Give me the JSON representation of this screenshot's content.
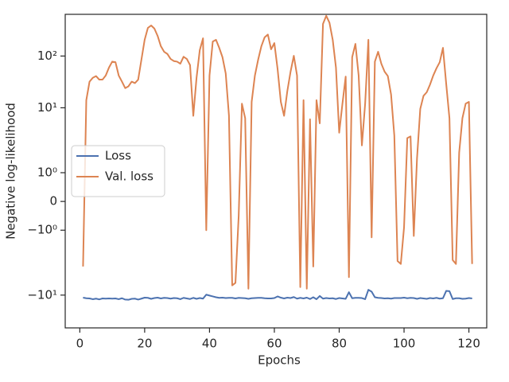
{
  "chart_data": {
    "type": "line",
    "xlabel": "Epochs",
    "ylabel": "Negative log-likelihood",
    "yscale": "symlog",
    "linthresh": 2,
    "xlim": [
      -4.5,
      125.5
    ],
    "xticks": [
      0,
      20,
      40,
      60,
      80,
      100,
      120
    ],
    "ylim": [
      -43,
      640
    ],
    "yticks": [
      {
        "value": -10,
        "label": "−10¹"
      },
      {
        "value": -1,
        "label": "−10⁰"
      },
      0,
      {
        "value": 1,
        "label": "10⁰"
      },
      {
        "value": 10,
        "label": "10¹"
      },
      {
        "value": 100,
        "label": "10²"
      }
    ],
    "legend": "center left",
    "x": [
      1,
      2,
      3,
      4,
      5,
      6,
      7,
      8,
      9,
      10,
      11,
      12,
      13,
      14,
      15,
      16,
      17,
      18,
      19,
      20,
      21,
      22,
      23,
      24,
      25,
      26,
      27,
      28,
      29,
      30,
      31,
      32,
      33,
      34,
      35,
      36,
      37,
      38,
      39,
      40,
      41,
      42,
      43,
      44,
      45,
      46,
      47,
      48,
      49,
      50,
      51,
      52,
      53,
      54,
      55,
      56,
      57,
      58,
      59,
      60,
      61,
      62,
      63,
      64,
      65,
      66,
      67,
      68,
      69,
      70,
      71,
      72,
      73,
      74,
      75,
      76,
      77,
      78,
      79,
      80,
      81,
      82,
      83,
      84,
      85,
      86,
      87,
      88,
      89,
      90,
      91,
      92,
      93,
      94,
      95,
      96,
      97,
      98,
      99,
      100,
      101,
      102,
      103,
      104,
      105,
      106,
      107,
      108,
      109,
      110,
      111,
      112,
      113,
      114,
      115,
      116,
      117,
      118,
      119,
      120,
      121
    ],
    "series": [
      {
        "name": "Loss",
        "color": "#4c72b0",
        "values": [
          -11.2,
          -11.5,
          -11.6,
          -12.0,
          -11.7,
          -12.1,
          -11.6,
          -11.7,
          -11.6,
          -11.7,
          -11.6,
          -12.0,
          -11.5,
          -12.2,
          -12.3,
          -11.8,
          -11.7,
          -12.2,
          -11.7,
          -11.2,
          -11.3,
          -11.8,
          -11.4,
          -11.2,
          -11.6,
          -11.3,
          -11.4,
          -11.7,
          -11.4,
          -11.5,
          -12.0,
          -11.3,
          -11.6,
          -11.9,
          -11.3,
          -11.8,
          -11.4,
          -11.7,
          -9.8,
          -10.2,
          -10.6,
          -11.0,
          -11.3,
          -11.2,
          -11.4,
          -11.3,
          -11.3,
          -11.6,
          -11.3,
          -11.4,
          -11.5,
          -11.8,
          -11.5,
          -11.4,
          -11.3,
          -11.3,
          -11.5,
          -11.6,
          -11.6,
          -11.4,
          -10.6,
          -11.2,
          -11.6,
          -11.2,
          -11.4,
          -10.9,
          -11.7,
          -11.3,
          -11.6,
          -11.2,
          -11.9,
          -11.0,
          -12.0,
          -10.4,
          -11.7,
          -11.4,
          -11.6,
          -11.5,
          -11.9,
          -11.4,
          -11.6,
          -11.8,
          -8.8,
          -11.5,
          -11.3,
          -11.3,
          -11.4,
          -12.0,
          -7.9,
          -8.6,
          -11.0,
          -11.3,
          -11.4,
          -11.6,
          -11.5,
          -11.7,
          -11.4,
          -11.4,
          -11.4,
          -11.2,
          -11.5,
          -11.3,
          -11.4,
          -11.8,
          -11.4,
          -11.6,
          -11.8,
          -11.4,
          -11.6,
          -11.3,
          -11.7,
          -11.5,
          -8.3,
          -8.4,
          -11.9,
          -11.5,
          -11.5,
          -11.8,
          -11.7,
          -11.4,
          -11.6
        ]
      },
      {
        "name": "Val. loss",
        "color": "#dd8452",
        "values": [
          -2.8,
          14,
          32,
          38,
          41,
          35,
          35,
          42,
          60,
          78,
          76,
          42,
          32,
          24,
          26,
          32,
          30,
          35,
          85,
          206,
          350,
          390,
          340,
          245,
          155,
          121,
          110,
          88,
          80,
          78,
          71,
          97,
          88,
          67,
          7,
          38,
          130,
          220,
          -1,
          42,
          190,
          206,
          144,
          95,
          46,
          7.1,
          -6.5,
          -5.8,
          -0.5,
          12,
          6.3,
          -7.5,
          13,
          42,
          85,
          155,
          230,
          260,
          135,
          178,
          56,
          13,
          7,
          21,
          50,
          101,
          42,
          -7,
          14,
          -7.5,
          6,
          -2.8,
          14,
          5,
          418,
          600,
          440,
          206,
          60,
          3.3,
          12,
          40,
          -4.5,
          95,
          172,
          42,
          1.95,
          12,
          206,
          -1.25,
          78,
          121,
          71,
          50,
          41,
          18,
          2.9,
          -2.2,
          -2.5,
          -0.9,
          2.6,
          2.8,
          -1.2,
          1.5,
          9.5,
          17,
          20,
          28,
          42,
          58,
          76,
          144,
          29,
          6.3,
          -2.1,
          -2.5,
          1.7,
          6.3,
          12,
          13,
          -2.5
        ]
      }
    ]
  }
}
